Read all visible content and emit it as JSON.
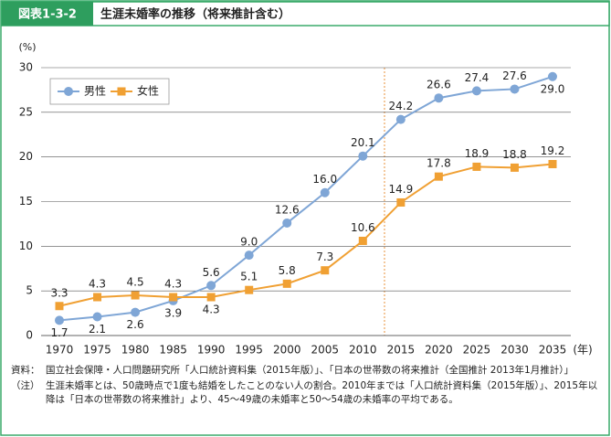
{
  "header": {
    "label": "図表1-3-2",
    "title": "生涯未婚率の推移（将来推計含む）"
  },
  "chart_data": {
    "type": "line",
    "y_label": "(%)",
    "x_label": "(年)",
    "categories": [
      "1970",
      "1975",
      "1980",
      "1985",
      "1990",
      "1995",
      "2000",
      "2005",
      "2010",
      "2015",
      "2020",
      "2025",
      "2030",
      "2035"
    ],
    "series": [
      {
        "name": "男性",
        "color": "#7fa6d6",
        "marker": "circle",
        "values": [
          1.7,
          2.1,
          2.6,
          3.9,
          5.6,
          9.0,
          12.6,
          16.0,
          20.1,
          24.2,
          26.6,
          27.4,
          27.6,
          29.0
        ],
        "value_labels": [
          "1.7",
          "2.1",
          "2.6",
          "3.9",
          "5.6",
          "9.0",
          "12.6",
          "16.0",
          "20.1",
          "24.2",
          "26.6",
          "27.4",
          "27.6",
          "29.0"
        ]
      },
      {
        "name": "女性",
        "color": "#f0a033",
        "marker": "square",
        "values": [
          3.3,
          4.3,
          4.5,
          4.3,
          4.3,
          5.1,
          5.8,
          7.3,
          10.6,
          14.9,
          17.8,
          18.9,
          18.8,
          19.2
        ],
        "value_labels": [
          "3.3",
          "4.3",
          "4.5",
          "4.3",
          "4.3",
          "5.1",
          "5.8",
          "7.3",
          "10.6",
          "14.9",
          "17.8",
          "18.9",
          "18.8",
          "19.2"
        ]
      }
    ],
    "ylim": [
      0,
      30
    ],
    "yticks": [
      0,
      5,
      10,
      15,
      20,
      25,
      30
    ],
    "grid": true,
    "legend": "top-left"
  },
  "notes": [
    {
      "label": "資料：",
      "text": "国立社会保障・人口問題研究所「人口統計資料集（2015年版）」、「日本の世帯数の将来推計（全国推計 2013年1月推計）」"
    },
    {
      "label": "（注）",
      "text": "生涯未婚率とは、50歳時点で1度も結婚をしたことのない人の割合。2010年までは「人口統計資料集（2015年版）」、2015年以降は「日本の世帯数の将来推計」より、45～49歳の未婚率と50～54歳の未婚率の平均である。"
    }
  ]
}
